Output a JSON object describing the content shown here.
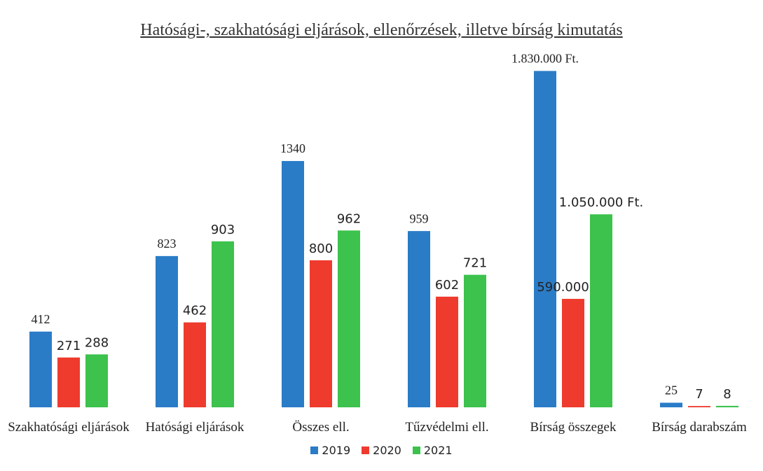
{
  "chart_data": {
    "type": "bar",
    "title": "Hatósági-, szakhatósági eljárások, ellenőrzések, illetve bírság kimutatás",
    "categories": [
      "Szakhatósági eljárások",
      "Hatósági eljárások",
      "Összes ell.",
      "Tűzvédelmi ell.",
      "Bírság összegek",
      "Bírság darabszám"
    ],
    "series": [
      {
        "name": "2019",
        "color": "#2a7cc7",
        "values": [
          412,
          823,
          1340,
          959,
          1830000,
          25
        ],
        "value_labels": [
          "412",
          "823",
          "1340",
          "959",
          "1.830.000 Ft.",
          "25"
        ]
      },
      {
        "name": "2020",
        "color": "#ee3b2e",
        "values": [
          271,
          462,
          800,
          602,
          590000,
          7
        ],
        "value_labels": [
          "271",
          "462",
          "800",
          "602",
          "590.000 Ft.",
          "7"
        ]
      },
      {
        "name": "2021",
        "color": "#3cc24d",
        "values": [
          288,
          903,
          962,
          721,
          1050000,
          8
        ],
        "value_labels": [
          "288",
          "903",
          "962",
          "721",
          "1.050.000 Ft.",
          "8"
        ]
      }
    ],
    "ylim": [
      0,
      1900
    ],
    "y2lim": [
      0,
      1900000
    ],
    "y2_categories": [
      "Bírság összegek"
    ],
    "legend": "bottom"
  }
}
